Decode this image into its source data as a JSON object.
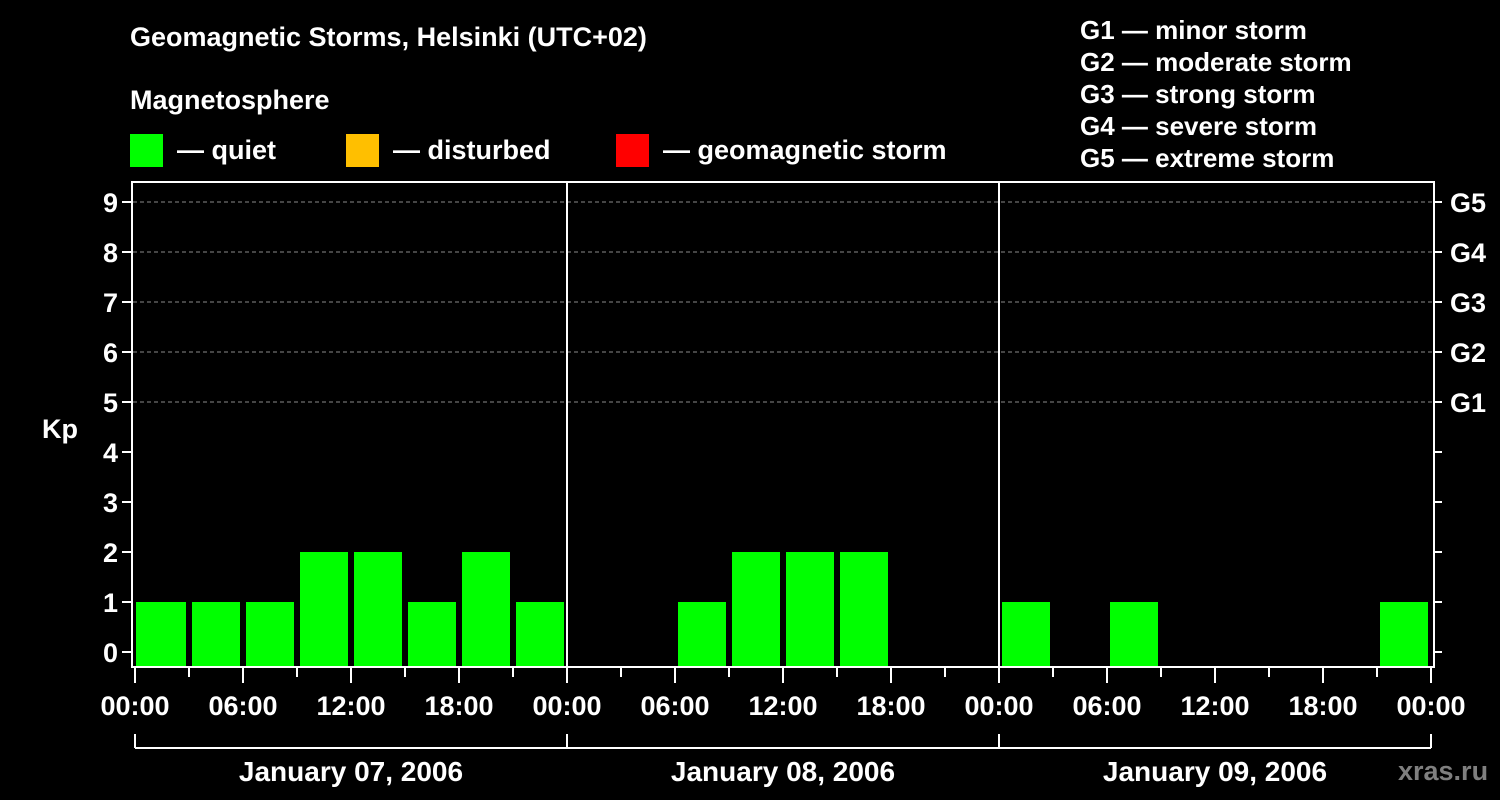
{
  "chart_data": {
    "type": "bar",
    "title": "Geomagnetic Storms, Helsinki (UTC+02)",
    "ylabel": "Kp",
    "ylim": [
      0,
      9
    ],
    "yticks": [
      "0",
      "1",
      "2",
      "3",
      "4",
      "5",
      "6",
      "7",
      "8",
      "9"
    ],
    "right_axis_labels": [
      {
        "kp": 5,
        "label": "G1"
      },
      {
        "kp": 6,
        "label": "G2"
      },
      {
        "kp": 7,
        "label": "G3"
      },
      {
        "kp": 8,
        "label": "G4"
      },
      {
        "kp": 9,
        "label": "G5"
      }
    ],
    "x_tick_labels": [
      "00:00",
      "06:00",
      "12:00",
      "18:00",
      "00:00",
      "06:00",
      "12:00",
      "18:00",
      "00:00",
      "06:00",
      "12:00",
      "18:00",
      "00:00"
    ],
    "days": [
      "January 07, 2006",
      "January 08, 2006",
      "January 09, 2006"
    ],
    "interval_hours": 3,
    "values": [
      1,
      1,
      1,
      2,
      2,
      1,
      2,
      1,
      0,
      0,
      1,
      2,
      2,
      2,
      0,
      0,
      1,
      0,
      1,
      0,
      0,
      0,
      0,
      1
    ],
    "grid": "dashed horizontal at Kp 5-9",
    "legend": {
      "heading": "Magnetosphere",
      "items": [
        {
          "label": "— quiet",
          "color": "#00ff00"
        },
        {
          "label": "— disturbed",
          "color": "#ffbf00"
        },
        {
          "label": "— geomagnetic storm",
          "color": "#ff0000"
        }
      ]
    },
    "storm_scale": [
      "G1 — minor storm",
      "G2 — moderate storm",
      "G3 — strong storm",
      "G4 — severe storm",
      "G5 — extreme storm"
    ]
  },
  "watermark": "xras.ru"
}
